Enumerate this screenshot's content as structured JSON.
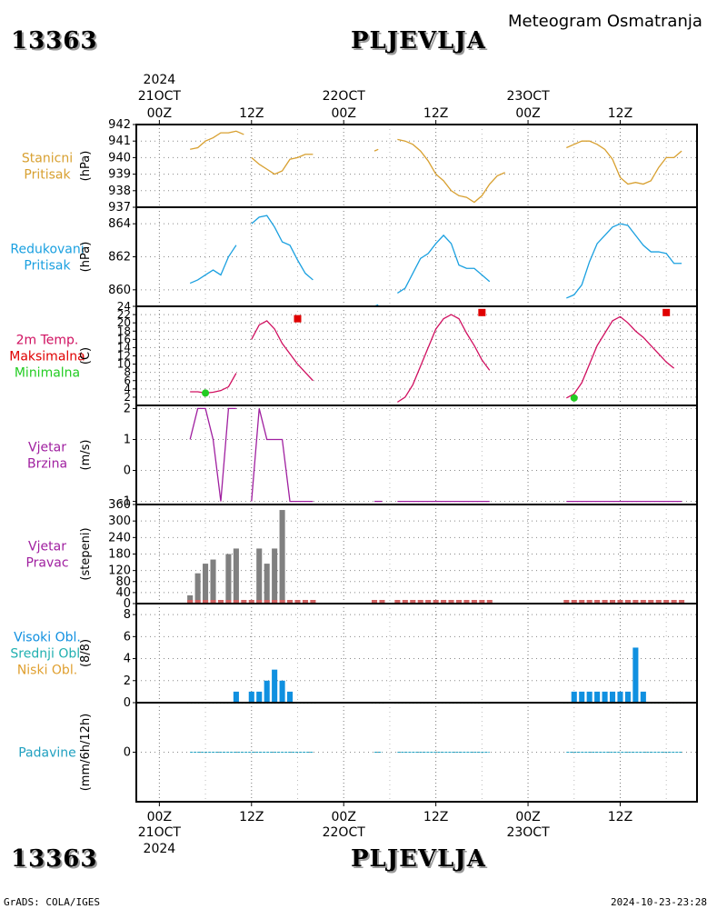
{
  "header": {
    "station_id": "13363",
    "station_name": "PLJEVLJA",
    "title": "Meteogram Osmatranja",
    "footer_left": "GrADS: COLA/IGES",
    "footer_right": "2024-10-23-23:28"
  },
  "colors": {
    "pressure": "#d8a030",
    "reduced": "#1aa0e0",
    "tmax": "#e00000",
    "tmin": "#22cc22",
    "temp_line": "#d01060",
    "wind": "#a020a0",
    "bars": "#808080",
    "base": "#d06060",
    "cloud_high": "#1090e0",
    "cloud_mid": "#20b0b0",
    "cloud_low": "#e0a030",
    "precip": "#20a0c0"
  },
  "time_axis": {
    "top_year": "2024",
    "labels_top": [
      {
        "t": 0,
        "l1": "21OCT",
        "l2": "00Z"
      },
      {
        "t": 12,
        "l1": "",
        "l2": "12Z"
      },
      {
        "t": 24,
        "l1": "22OCT",
        "l2": "00Z"
      },
      {
        "t": 36,
        "l1": "",
        "l2": "12Z"
      },
      {
        "t": 48,
        "l1": "23OCT",
        "l2": "00Z"
      },
      {
        "t": 60,
        "l1": "",
        "l2": "12Z"
      }
    ],
    "labels_bottom": [
      {
        "t": 0,
        "l1": "00Z",
        "l2": "21OCT",
        "l3": "2024"
      },
      {
        "t": 12,
        "l1": "12Z",
        "l2": "",
        "l3": ""
      },
      {
        "t": 24,
        "l1": "00Z",
        "l2": "22OCT",
        "l3": ""
      },
      {
        "t": 36,
        "l1": "12Z",
        "l2": "",
        "l3": ""
      },
      {
        "t": 48,
        "l1": "00Z",
        "l2": "23OCT",
        "l3": ""
      },
      {
        "t": 60,
        "l1": "12Z",
        "l2": "",
        "l3": ""
      }
    ],
    "range": [
      -3,
      70
    ]
  },
  "chart_data": [
    {
      "type": "line",
      "panel": "stanicni_pritisak",
      "labels": [
        "Stanicni",
        "Pritisak"
      ],
      "unit": "(hPa)",
      "ylim": [
        937,
        942
      ],
      "yticks": [
        937,
        938,
        939,
        940,
        941,
        942
      ],
      "series": [
        {
          "segment": [
            [
              4,
              940.5
            ],
            [
              5,
              940.6
            ],
            [
              6,
              941.0
            ],
            [
              7,
              941.2
            ],
            [
              8,
              941.5
            ],
            [
              9,
              941.5
            ],
            [
              10,
              941.6
            ],
            [
              11,
              941.4
            ]
          ]
        },
        {
          "segment": [
            [
              12,
              940.0
            ],
            [
              13,
              939.6
            ],
            [
              14,
              939.3
            ],
            [
              15,
              939.0
            ],
            [
              16,
              939.2
            ],
            [
              17,
              939.9
            ],
            [
              18,
              940.0
            ],
            [
              19,
              940.2
            ],
            [
              20,
              940.2
            ]
          ]
        },
        {
          "segment": [
            [
              28,
              940.4
            ],
            [
              28.5,
              940.5
            ]
          ]
        },
        {
          "segment": [
            [
              31,
              941.1
            ],
            [
              32,
              941.0
            ],
            [
              33,
              940.8
            ],
            [
              34,
              940.4
            ],
            [
              35,
              939.8
            ],
            [
              36,
              939.0
            ],
            [
              37,
              938.6
            ],
            [
              38,
              938.0
            ],
            [
              39,
              937.7
            ],
            [
              40,
              937.6
            ],
            [
              41,
              937.3
            ],
            [
              42,
              937.7
            ],
            [
              43,
              938.4
            ],
            [
              44,
              938.9
            ],
            [
              45,
              939.1
            ]
          ]
        },
        {
          "segment": [
            [
              53,
              940.6
            ],
            [
              54,
              940.8
            ],
            [
              55,
              941.0
            ],
            [
              56,
              941.0
            ],
            [
              57,
              940.8
            ],
            [
              58,
              940.5
            ],
            [
              59,
              939.9
            ],
            [
              60,
              938.8
            ],
            [
              61,
              938.4
            ],
            [
              62,
              938.5
            ],
            [
              63,
              938.4
            ],
            [
              64,
              938.6
            ],
            [
              65,
              939.4
            ],
            [
              66,
              940.0
            ],
            [
              67,
              940.0
            ],
            [
              68,
              940.4
            ]
          ]
        }
      ]
    },
    {
      "type": "line",
      "panel": "redukovani_pritisak",
      "labels": [
        "Redukovani",
        "Pritisak"
      ],
      "unit": "(hPa)",
      "ylim": [
        859,
        865
      ],
      "yticks": [
        860,
        862,
        864
      ],
      "series": [
        {
          "segment": [
            [
              4,
              860.4
            ],
            [
              5,
              860.6
            ],
            [
              6,
              860.9
            ],
            [
              7,
              861.2
            ],
            [
              8,
              860.9
            ],
            [
              9,
              862.0
            ],
            [
              10,
              862.7
            ]
          ]
        },
        {
          "segment": [
            [
              12,
              864.0
            ],
            [
              13,
              864.4
            ],
            [
              14,
              864.5
            ],
            [
              15,
              863.8
            ],
            [
              16,
              862.9
            ],
            [
              17,
              862.7
            ],
            [
              18,
              861.8
            ],
            [
              19,
              861.0
            ],
            [
              20,
              860.6
            ]
          ]
        },
        {
          "segment": [
            [
              28,
              859.0
            ],
            [
              28.5,
              859.1
            ]
          ]
        },
        {
          "segment": [
            [
              31,
              859.8
            ],
            [
              32,
              860.1
            ],
            [
              33,
              861.0
            ],
            [
              34,
              861.9
            ],
            [
              35,
              862.2
            ],
            [
              36,
              862.8
            ],
            [
              37,
              863.3
            ],
            [
              38,
              862.8
            ],
            [
              39,
              861.5
            ],
            [
              40,
              861.3
            ],
            [
              41,
              861.3
            ],
            [
              42,
              860.9
            ],
            [
              43,
              860.5
            ]
          ]
        },
        {
          "segment": [
            [
              53,
              859.5
            ],
            [
              54,
              859.7
            ],
            [
              55,
              860.3
            ],
            [
              56,
              861.7
            ],
            [
              57,
              862.8
            ],
            [
              58,
              863.3
            ],
            [
              59,
              863.8
            ],
            [
              60,
              864.0
            ],
            [
              61,
              863.9
            ],
            [
              62,
              863.3
            ],
            [
              63,
              862.7
            ],
            [
              64,
              862.3
            ],
            [
              65,
              862.3
            ],
            [
              66,
              862.2
            ],
            [
              67,
              861.6
            ],
            [
              68,
              861.6
            ]
          ]
        }
      ]
    },
    {
      "type": "line",
      "panel": "temperatura",
      "labels": [
        "2m Temp.",
        "Maksimalna",
        "Minimalna"
      ],
      "unit": "(C)",
      "ylim": [
        0,
        24
      ],
      "yticks": [
        2,
        4,
        6,
        8,
        10,
        12,
        14,
        16,
        18,
        20,
        22,
        24
      ],
      "series": [
        {
          "segment": [
            [
              4,
              3.3
            ],
            [
              5,
              3.3
            ],
            [
              6,
              3.0
            ],
            [
              7,
              3.2
            ],
            [
              8,
              3.6
            ],
            [
              9,
              4.5
            ],
            [
              10,
              7.8
            ]
          ]
        },
        {
          "segment": [
            [
              12,
              16
            ],
            [
              13,
              19.5
            ],
            [
              14,
              20.5
            ],
            [
              15,
              18.5
            ],
            [
              16,
              15
            ],
            [
              17,
              12.5
            ],
            [
              18,
              10
            ],
            [
              19,
              8
            ],
            [
              20,
              6
            ]
          ]
        },
        {
          "segment": [
            [
              31,
              0.8
            ],
            [
              32,
              2
            ],
            [
              33,
              5
            ],
            [
              34,
              9.5
            ],
            [
              35,
              14
            ],
            [
              36,
              18.5
            ],
            [
              37,
              21
            ],
            [
              38,
              22
            ],
            [
              39,
              21
            ],
            [
              40,
              17.5
            ],
            [
              41,
              14.5
            ],
            [
              42,
              11
            ],
            [
              43,
              8.5
            ]
          ]
        },
        {
          "segment": [
            [
              53,
              1.8
            ],
            [
              54,
              2.8
            ],
            [
              55,
              5.5
            ],
            [
              56,
              10
            ],
            [
              57,
              14.5
            ],
            [
              58,
              17.5
            ],
            [
              59,
              20.5
            ],
            [
              60,
              21.5
            ],
            [
              61,
              20
            ],
            [
              62,
              18
            ],
            [
              63,
              16.5
            ],
            [
              64,
              14.5
            ],
            [
              65,
              12.5
            ],
            [
              66,
              10.5
            ],
            [
              67,
              9
            ]
          ]
        }
      ],
      "max_points": [
        [
          18,
          21
        ],
        [
          42,
          22.5
        ],
        [
          66,
          22.5
        ]
      ],
      "min_points": [
        [
          6,
          3
        ],
        [
          54,
          1.8
        ]
      ]
    },
    {
      "type": "line",
      "panel": "vjetar_brzina",
      "labels": [
        "Vjetar",
        "Brzina"
      ],
      "unit": "(m/s)",
      "ylim": [
        -1.1,
        2.1
      ],
      "yticks": [
        -1,
        0,
        1,
        2
      ],
      "series": [
        {
          "segment": [
            [
              4,
              1
            ],
            [
              5,
              2
            ],
            [
              6,
              2
            ],
            [
              7,
              1
            ],
            [
              8,
              -1
            ],
            [
              9,
              2
            ],
            [
              10,
              2
            ]
          ]
        },
        {
          "segment": [
            [
              12,
              -1
            ],
            [
              13,
              2
            ],
            [
              14,
              1
            ],
            [
              15,
              1
            ],
            [
              16,
              1
            ],
            [
              17,
              -1
            ],
            [
              18,
              -1
            ],
            [
              19,
              -1
            ],
            [
              20,
              -1
            ]
          ]
        },
        {
          "segment": [
            [
              28,
              -1
            ],
            [
              29,
              -1
            ]
          ]
        },
        {
          "segment": [
            [
              31,
              -1
            ],
            [
              43,
              -1
            ]
          ]
        },
        {
          "segment": [
            [
              53,
              -1
            ],
            [
              68,
              -1
            ]
          ]
        }
      ]
    },
    {
      "type": "bar",
      "panel": "vjetar_pravac",
      "labels": [
        "Vjetar",
        "Pravac"
      ],
      "unit": "(stepeni)",
      "ylim": [
        0,
        360
      ],
      "yticks": [
        0,
        40,
        80,
        120,
        180,
        240,
        300,
        360
      ],
      "bars": [
        [
          4,
          30
        ],
        [
          5,
          110
        ],
        [
          6,
          145
        ],
        [
          7,
          160
        ],
        [
          9,
          180
        ],
        [
          10,
          200
        ],
        [
          12,
          0
        ],
        [
          13,
          200
        ],
        [
          14,
          145
        ],
        [
          15,
          200
        ],
        [
          16,
          340
        ],
        [
          17,
          0
        ],
        [
          18,
          0
        ],
        [
          19,
          0
        ],
        [
          20,
          0
        ]
      ],
      "base_ranges": [
        [
          4,
          20
        ],
        [
          28,
          29
        ],
        [
          31,
          43
        ],
        [
          53,
          68
        ]
      ]
    },
    {
      "type": "bar",
      "panel": "oblacnost",
      "labels": [
        "Visoki Obl.",
        "Srednji Obl.",
        "Niski Obl."
      ],
      "unit": "(8/8)",
      "ylim": [
        0,
        9
      ],
      "yticks": [
        0,
        2,
        4,
        6,
        8
      ],
      "bars": [
        [
          10,
          1
        ],
        [
          12,
          1
        ],
        [
          13,
          1
        ],
        [
          14,
          2
        ],
        [
          15,
          3
        ],
        [
          16,
          2
        ],
        [
          17,
          1
        ],
        [
          54,
          1
        ],
        [
          55,
          1
        ],
        [
          56,
          1
        ],
        [
          57,
          1
        ],
        [
          58,
          1
        ],
        [
          59,
          1
        ],
        [
          60,
          1
        ],
        [
          61,
          1
        ],
        [
          62,
          5
        ],
        [
          63,
          1
        ]
      ],
      "base_ranges": [
        [
          4,
          20
        ],
        [
          28,
          29
        ],
        [
          31,
          43
        ],
        [
          53,
          68
        ]
      ]
    },
    {
      "type": "line",
      "panel": "padavine",
      "labels": [
        "Padavine"
      ],
      "unit": "(mm/6h/12h)",
      "ylim": [
        -4.5,
        4.5
      ],
      "yticks": [
        0
      ],
      "series": [
        {
          "segment": [
            [
              4,
              0
            ],
            [
              20,
              0
            ]
          ]
        },
        {
          "segment": [
            [
              28,
              0
            ],
            [
              29,
              0
            ]
          ]
        },
        {
          "segment": [
            [
              31,
              0
            ],
            [
              43,
              0
            ]
          ]
        },
        {
          "segment": [
            [
              53,
              0
            ],
            [
              68,
              0
            ]
          ]
        }
      ]
    }
  ]
}
